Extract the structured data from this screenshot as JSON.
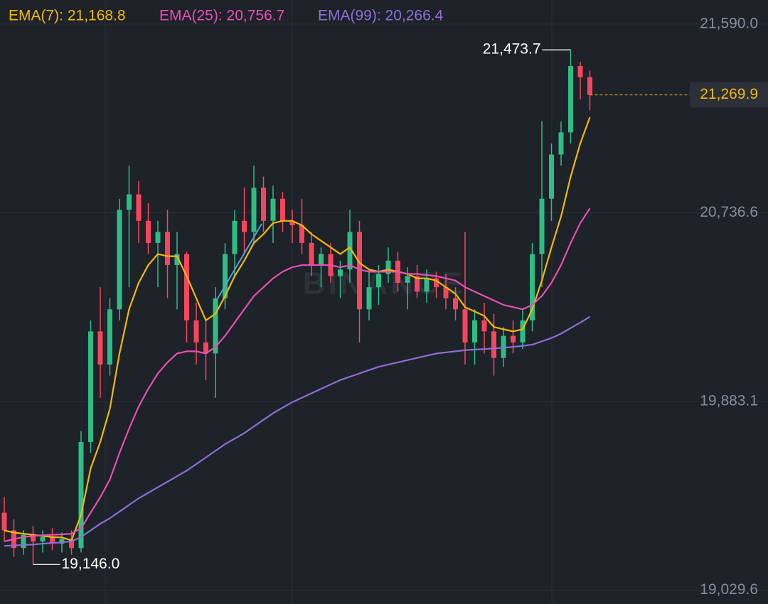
{
  "chart_data": {
    "type": "candlestick",
    "up_color": "#2ebd85",
    "down_color": "#f6465d",
    "ylim": [
      18967,
      21699
    ],
    "yticks": [
      {
        "value": 21590.0,
        "label": "21,590.0"
      },
      {
        "value": 20736.6,
        "label": "20,736.6"
      },
      {
        "value": 19883.1,
        "label": "19,883.1"
      },
      {
        "value": 19029.6,
        "label": "19,029.6"
      }
    ],
    "grid": true,
    "watermark": "BINANCE",
    "open": [
      19380,
      19300,
      19220,
      19280,
      19250,
      19270,
      19240,
      19260,
      19220,
      19700,
      20200,
      20050,
      20300,
      20750,
      20820,
      20700,
      20600,
      20650,
      20500,
      20550,
      20250,
      20150,
      20100,
      20350,
      20550,
      20700,
      20650,
      20850,
      20700,
      20800,
      20700,
      20680,
      20600,
      20500,
      20550,
      20450,
      20480,
      20650,
      20300,
      20400,
      20460,
      20520,
      20420,
      20450,
      20380,
      20440,
      20400,
      20350,
      20300,
      20150,
      20250,
      20200,
      20080,
      20180,
      20150,
      20250,
      20550,
      20800,
      21000,
      21100,
      21400,
      21350
    ],
    "high": [
      19450,
      19350,
      19300,
      19320,
      19300,
      19310,
      19290,
      19300,
      19750,
      20250,
      20400,
      20350,
      20800,
      20950,
      20880,
      20780,
      20700,
      20750,
      20650,
      20560,
      20330,
      20250,
      20400,
      20600,
      20750,
      20850,
      20950,
      20900,
      20860,
      20830,
      20750,
      20800,
      20650,
      20580,
      20600,
      20520,
      20750,
      20700,
      20480,
      20500,
      20580,
      20560,
      20490,
      20500,
      20480,
      20470,
      20460,
      20400,
      20650,
      20300,
      20330,
      20280,
      20220,
      20250,
      20300,
      20600,
      21150,
      21050,
      21150,
      21473.7,
      21420,
      21380
    ],
    "low": [
      19250,
      19180,
      19190,
      19146,
      19200,
      19210,
      19200,
      19190,
      19200,
      19650,
      19900,
      20000,
      20250,
      20400,
      20600,
      20550,
      20400,
      20350,
      20300,
      20150,
      20050,
      19980,
      19900,
      20300,
      20450,
      20550,
      20600,
      20650,
      20600,
      20650,
      20600,
      20550,
      20450,
      20400,
      20420,
      20350,
      20420,
      20150,
      20250,
      20320,
      20420,
      20380,
      20300,
      20350,
      20330,
      20350,
      20300,
      20250,
      20050,
      20050,
      20100,
      20000,
      20040,
      20100,
      20120,
      20200,
      20400,
      20700,
      20950,
      21050,
      21250,
      21200
    ],
    "close": [
      19300,
      19220,
      19280,
      19250,
      19270,
      19240,
      19260,
      19220,
      19700,
      20200,
      20050,
      20300,
      20750,
      20820,
      20700,
      20600,
      20650,
      20500,
      20550,
      20250,
      20150,
      20100,
      20350,
      20550,
      20700,
      20650,
      20850,
      20700,
      20800,
      20700,
      20680,
      20600,
      20500,
      20550,
      20450,
      20480,
      20650,
      20300,
      20400,
      20460,
      20520,
      20420,
      20450,
      20380,
      20440,
      20400,
      20350,
      20300,
      20150,
      20250,
      20200,
      20080,
      20180,
      20150,
      20250,
      20550,
      20800,
      21000,
      21100,
      21400,
      21350,
      21269.9
    ],
    "series": [
      {
        "name": "EMA(7): 21,168.8",
        "color": "#f0b90b",
        "values": [
          19300,
          19290,
          19285,
          19280,
          19275,
          19270,
          19268,
          19255,
          19370,
          19580,
          19700,
          19850,
          20100,
          20300,
          20420,
          20500,
          20550,
          20540,
          20540,
          20450,
          20350,
          20250,
          20280,
          20360,
          20450,
          20520,
          20600,
          20640,
          20690,
          20700,
          20700,
          20680,
          20640,
          20610,
          20580,
          20550,
          20580,
          20510,
          20480,
          20470,
          20480,
          20470,
          20460,
          20440,
          20440,
          20430,
          20400,
          20370,
          20310,
          20290,
          20270,
          20220,
          20210,
          20200,
          20210,
          20300,
          20430,
          20580,
          20720,
          20900,
          21050,
          21168.8
        ]
      },
      {
        "name": "EMA(25): 20,756.7",
        "color": "#e84fb5",
        "values": [
          19250,
          19260,
          19270,
          19275,
          19278,
          19280,
          19282,
          19285,
          19310,
          19380,
          19450,
          19530,
          19650,
          19760,
          19860,
          19940,
          20010,
          20060,
          20100,
          20110,
          20110,
          20100,
          20130,
          20180,
          20240,
          20300,
          20360,
          20400,
          20440,
          20470,
          20490,
          20500,
          20500,
          20500,
          20500,
          20490,
          20500,
          20480,
          20470,
          20470,
          20470,
          20470,
          20460,
          20460,
          20455,
          20450,
          20440,
          20430,
          20400,
          20380,
          20360,
          20340,
          20320,
          20310,
          20300,
          20320,
          20360,
          20420,
          20500,
          20600,
          20690,
          20756.7
        ]
      },
      {
        "name": "EMA(99): 20,266.4",
        "color": "#8c6fd6",
        "values": [
          19230,
          19232,
          19234,
          19236,
          19240,
          19243,
          19246,
          19250,
          19270,
          19300,
          19330,
          19355,
          19385,
          19415,
          19445,
          19470,
          19495,
          19520,
          19545,
          19570,
          19600,
          19630,
          19660,
          19690,
          19715,
          19740,
          19770,
          19800,
          19830,
          19855,
          19880,
          19900,
          19920,
          19940,
          19960,
          19980,
          19995,
          20010,
          20025,
          20040,
          20050,
          20060,
          20070,
          20080,
          20090,
          20100,
          20105,
          20110,
          20115,
          20118,
          20120,
          20123,
          20126,
          20130,
          20135,
          20140,
          20155,
          20170,
          20190,
          20215,
          20240,
          20266.4
        ]
      }
    ],
    "high_annotation": {
      "value": 21473.7,
      "label": "21,473.7"
    },
    "low_annotation": {
      "value": 19146.0,
      "label": "19,146.0"
    },
    "last_price": {
      "value": 21269.9,
      "label": "21,269.9"
    }
  }
}
